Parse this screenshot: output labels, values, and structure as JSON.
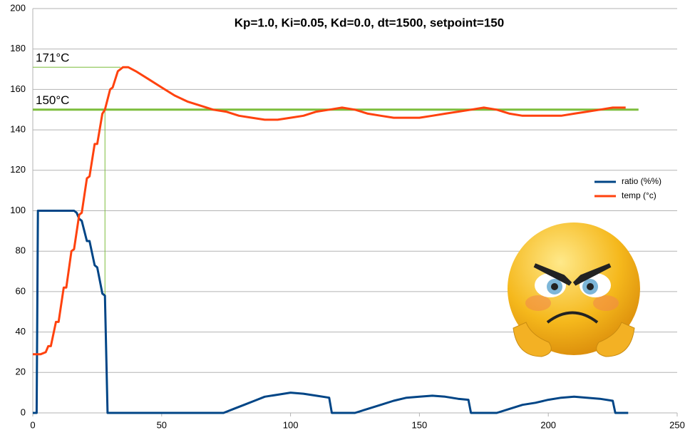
{
  "chart_data": {
    "type": "line",
    "title": "Kp=1.0, Ki=0.05, Kd=0.0, dt=1500, setpoint=150",
    "xlim": [
      0,
      250
    ],
    "xticks": [
      0,
      50,
      100,
      150,
      200,
      250
    ],
    "ylim": [
      0,
      200
    ],
    "yticks": [
      0,
      20,
      40,
      60,
      80,
      100,
      120,
      140,
      160,
      180,
      200
    ],
    "grid": true,
    "legend": "right",
    "series": [
      {
        "name": "ratio (%%)",
        "color": "#004586",
        "x": [
          0,
          1.5,
          2,
          5,
          16,
          17,
          18,
          19,
          21,
          22,
          24,
          25,
          27,
          28,
          29,
          40,
          74,
          78,
          82,
          86,
          90,
          95,
          100,
          105,
          110,
          115,
          116,
          125,
          130,
          135,
          140,
          145,
          150,
          155,
          160,
          165,
          169,
          170,
          180,
          185,
          190,
          195,
          200,
          205,
          210,
          215,
          220,
          225,
          226,
          231
        ],
        "values": [
          0,
          0,
          100,
          100,
          100,
          99,
          96,
          95,
          85,
          85,
          73,
          72,
          59,
          58,
          0,
          0,
          0,
          2,
          4,
          6,
          8,
          9,
          10,
          9.5,
          8.5,
          7.5,
          0,
          0,
          2,
          4,
          6,
          7.5,
          8,
          8.5,
          8,
          7,
          6.5,
          0,
          0,
          2,
          4,
          5,
          6.5,
          7.5,
          8,
          7.5,
          7,
          6,
          0,
          0
        ]
      },
      {
        "name": "temp (°c)",
        "color": "#ff420e",
        "x": [
          0,
          3,
          5,
          6,
          7,
          9,
          10,
          12,
          13,
          15,
          16,
          18,
          19,
          21,
          22,
          24,
          25,
          27,
          28,
          30,
          31,
          33,
          35,
          37,
          40,
          45,
          50,
          55,
          60,
          65,
          70,
          75,
          80,
          85,
          90,
          95,
          100,
          105,
          110,
          115,
          120,
          125,
          130,
          135,
          140,
          145,
          150,
          155,
          160,
          165,
          170,
          175,
          180,
          185,
          190,
          195,
          200,
          205,
          210,
          215,
          220,
          225,
          230
        ],
        "values": [
          29,
          29,
          30,
          33,
          33,
          45,
          45,
          62,
          62,
          80,
          81,
          98,
          99,
          116,
          117,
          133,
          133,
          148,
          150,
          160,
          161,
          169,
          171,
          171,
          169,
          165,
          161,
          157,
          154,
          152,
          150,
          149,
          147,
          146,
          145,
          145,
          146,
          147,
          149,
          150,
          151,
          150,
          148,
          147,
          146,
          146,
          146,
          147,
          148,
          149,
          150,
          151,
          150,
          148,
          147,
          147,
          147,
          147,
          148,
          149,
          150,
          151,
          151
        ]
      }
    ],
    "setpoint": {
      "value": 150,
      "x": [
        0,
        235
      ],
      "color": "#7cbd3c"
    },
    "annotations": [
      {
        "text": "171°C",
        "value": 171,
        "x": [
          0,
          34
        ]
      },
      {
        "text": "150°C",
        "value": 150
      }
    ],
    "guide": {
      "x": 28,
      "y": [
        58,
        150
      ]
    }
  }
}
